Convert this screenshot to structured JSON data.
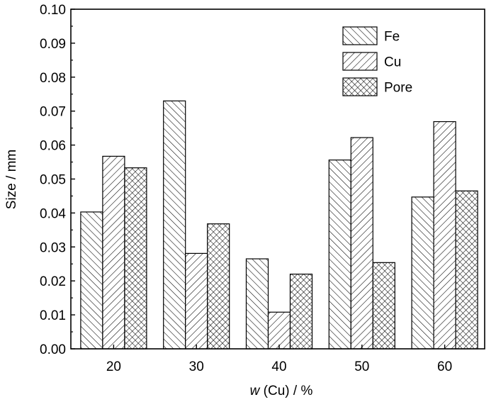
{
  "chart_data": {
    "type": "bar",
    "categories": [
      "20",
      "30",
      "40",
      "50",
      "60"
    ],
    "series": [
      {
        "name": "Fe",
        "values": [
          0.0403,
          0.073,
          0.0265,
          0.0556,
          0.0447
        ],
        "pattern": "diag-right"
      },
      {
        "name": "Cu",
        "values": [
          0.0567,
          0.0281,
          0.0108,
          0.0622,
          0.0669
        ],
        "pattern": "diag-left"
      },
      {
        "name": "Pore",
        "values": [
          0.0533,
          0.0368,
          0.022,
          0.0254,
          0.0465
        ],
        "pattern": "crosshatch"
      }
    ],
    "xlabel_italic": "w",
    "xlabel_rest": " (Cu) / %",
    "ylabel": "Size / mm",
    "ylim": [
      0,
      0.1
    ],
    "yticks": [
      "0.00",
      "0.01",
      "0.02",
      "0.03",
      "0.04",
      "0.05",
      "0.06",
      "0.07",
      "0.08",
      "0.09",
      "0.10"
    ],
    "grid": false,
    "legend_position": "top-right",
    "bar_fill": "#ffffff",
    "line_color": "#000000"
  }
}
